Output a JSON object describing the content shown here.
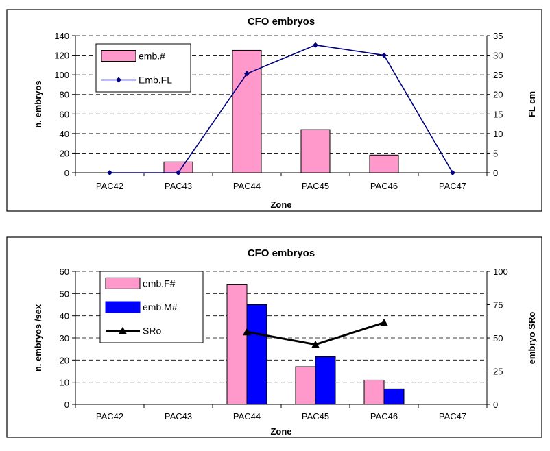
{
  "chart_data": [
    {
      "type": "bar",
      "title": "CFO embryos",
      "xlabel": "Zone",
      "ylabel": "n. embryos",
      "y2label": "FL cm",
      "categories": [
        "PAC42",
        "PAC43",
        "PAC44",
        "PAC45",
        "PAC46",
        "PAC47"
      ],
      "ylim": [
        0,
        140
      ],
      "yticks": [
        0,
        20,
        40,
        60,
        80,
        100,
        120,
        140
      ],
      "y2lim": [
        0,
        35
      ],
      "y2ticks": [
        0,
        5,
        10,
        15,
        20,
        25,
        30,
        35
      ],
      "grid": true,
      "legend_position": "top-left",
      "series": [
        {
          "name": "emb.#",
          "kind": "bar",
          "axis": "left",
          "color": "#ff99cc",
          "values": [
            0,
            11,
            125,
            44,
            18,
            0
          ]
        },
        {
          "name": "Emb.FL",
          "kind": "line",
          "axis": "right",
          "color": "#000080",
          "marker": "diamond",
          "values": [
            0,
            0,
            25.3,
            32.6,
            30,
            0
          ]
        }
      ]
    },
    {
      "type": "bar",
      "title": "CFO embryos",
      "xlabel": "Zone",
      "ylabel": "n. embryos /sex",
      "y2label": "embryo SRo",
      "categories": [
        "PAC42",
        "PAC43",
        "PAC44",
        "PAC45",
        "PAC46",
        "PAC47"
      ],
      "ylim": [
        0,
        60
      ],
      "yticks": [
        0,
        10,
        20,
        30,
        40,
        50,
        60
      ],
      "y2lim": [
        0,
        100
      ],
      "y2ticks": [
        0,
        25,
        50,
        75,
        100
      ],
      "grid": true,
      "legend_position": "top-left",
      "series": [
        {
          "name": "emb.F#",
          "kind": "bar",
          "axis": "left",
          "color": "#ff99cc",
          "values": [
            0,
            0,
            54,
            17,
            11,
            0
          ]
        },
        {
          "name": "emb.M#",
          "kind": "bar",
          "axis": "left",
          "color": "#0000ff",
          "values": [
            0,
            0,
            45,
            21.5,
            7,
            0
          ]
        },
        {
          "name": "SRo",
          "kind": "line",
          "axis": "right",
          "color": "#000000",
          "marker": "triangle",
          "values": [
            null,
            null,
            54.5,
            45,
            61.5,
            null
          ]
        }
      ]
    }
  ]
}
